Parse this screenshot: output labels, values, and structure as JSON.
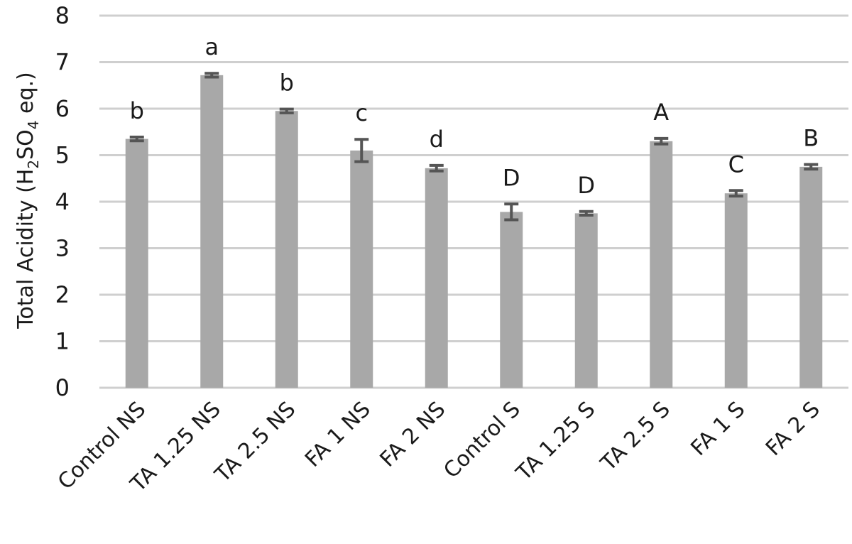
{
  "chart_data": {
    "type": "bar",
    "ylabel": "Total Acidity (H2SO4 eq.)",
    "ylabel_parts": {
      "prefix": "Total Acidity (H",
      "sub1": "2",
      "mid": "SO",
      "sub2": "4",
      "suffix": " eq.)"
    },
    "ylim": [
      0,
      8
    ],
    "yticks": [
      0,
      1,
      2,
      3,
      4,
      5,
      6,
      7,
      8
    ],
    "grid": true,
    "categories": [
      "Control NS",
      "TA 1.25 NS",
      "TA 2.5 NS",
      "FA 1 NS",
      "FA 2 NS",
      "Control S",
      "TA 1.25 S",
      "TA 2.5 S",
      "FA 1 S",
      "FA 2 S"
    ],
    "values": [
      5.35,
      6.72,
      5.95,
      5.1,
      4.72,
      3.78,
      3.75,
      5.3,
      4.18,
      4.75
    ],
    "errors": [
      0.04,
      0.04,
      0.04,
      0.24,
      0.06,
      0.17,
      0.04,
      0.06,
      0.06,
      0.05
    ],
    "significance": [
      "b",
      "a",
      "b",
      "c",
      "d",
      "D",
      "D",
      "A",
      "C",
      "B"
    ],
    "colors": {
      "bar": "#a8a8a8",
      "error_bar": "#555555",
      "grid": "#cfcfcf"
    }
  }
}
